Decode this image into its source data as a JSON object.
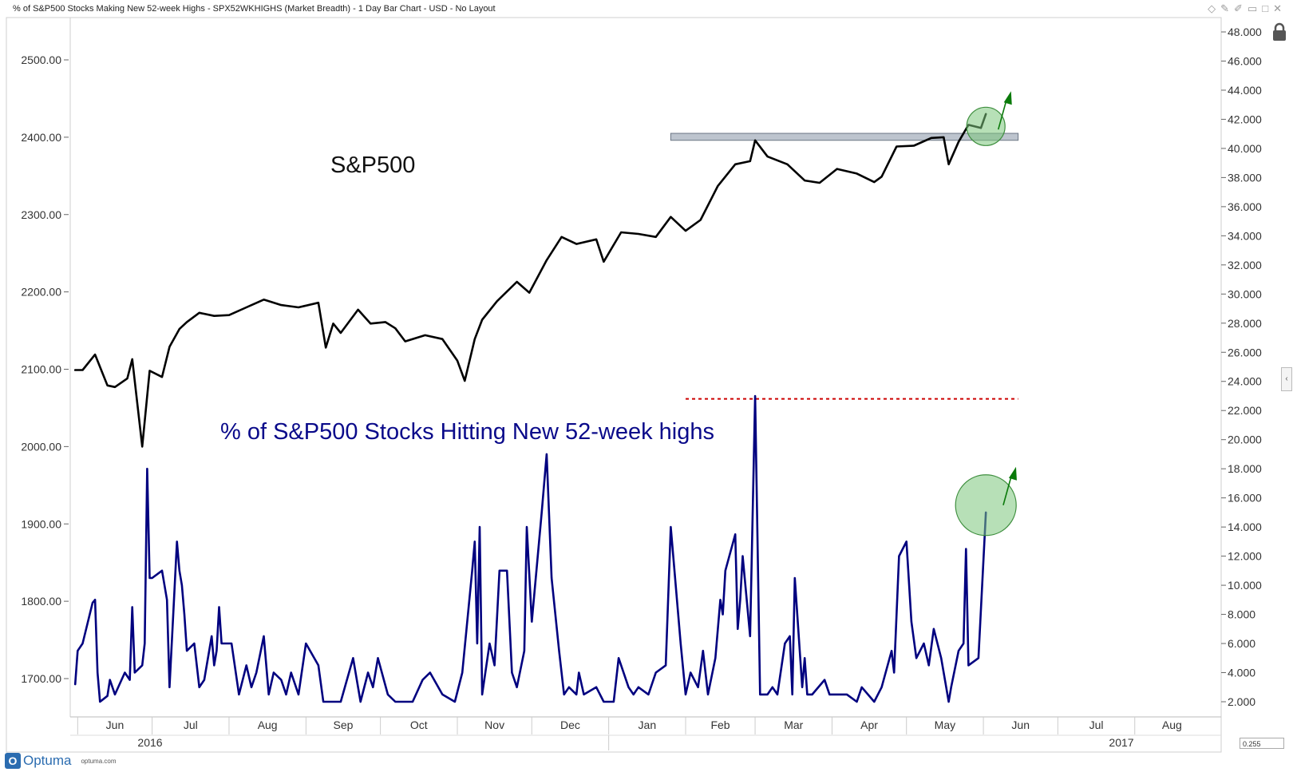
{
  "window": {
    "title": "% of S&P500 Stocks Making New 52-week Highs - SPX52WKHIGHS (Market Breadth) - 1 Day Bar Chart - USD - No Layout",
    "tool_icons": [
      "diamond-icon",
      "pin-icon",
      "pencil-icon",
      "minimize-icon",
      "maximize-icon",
      "close-icon"
    ]
  },
  "footer": {
    "logo_letter": "O",
    "logo_name": "Optuma",
    "logo_url": "optuma.com",
    "scale_readout": "0.255"
  },
  "colors": {
    "spx_line": "#000000",
    "breadth_line": "#00007f",
    "highlight_circle": "#7bc67b",
    "arrow": "#0a7a0a",
    "resistance_band": "#9aa5b4",
    "dotted_line": "#cc0000"
  },
  "chart_data": {
    "type": "line",
    "x_axis": {
      "months": [
        "Jun",
        "Jul",
        "Aug",
        "Sep",
        "Oct",
        "Nov",
        "Dec",
        "Jan",
        "Feb",
        "Mar",
        "Apr",
        "May",
        "Jun",
        "Jul",
        "Aug"
      ],
      "years": [
        "2016",
        "2017"
      ]
    },
    "left_axis": {
      "ticks": [
        "2500.00",
        "2400.00",
        "2300.00",
        "2200.00",
        "2100.00",
        "2000.00",
        "1900.00",
        "1800.00",
        "1700.00"
      ]
    },
    "right_axis": {
      "ticks": [
        "48.000",
        "46.000",
        "44.000",
        "42.000",
        "40.000",
        "38.000",
        "36.000",
        "34.000",
        "32.000",
        "30.000",
        "28.000",
        "26.000",
        "24.000",
        "22.000",
        "20.000",
        "18.000",
        "16.000",
        "14.000",
        "12.000",
        "10.000",
        "8.000",
        "6.000",
        "4.000",
        "2.000"
      ]
    },
    "annotations": {
      "spx_label": "S&P500",
      "breadth_label": "% of S&P500 Stocks Hitting New 52-week highs"
    },
    "series": [
      {
        "name": "S&P500",
        "axis": "left",
        "points": [
          [
            "2016-05-31",
            2099
          ],
          [
            "2016-06-03",
            2099
          ],
          [
            "2016-06-08",
            2119
          ],
          [
            "2016-06-13",
            2079
          ],
          [
            "2016-06-16",
            2077
          ],
          [
            "2016-06-21",
            2088
          ],
          [
            "2016-06-23",
            2113
          ],
          [
            "2016-06-27",
            2000
          ],
          [
            "2016-06-30",
            2098
          ],
          [
            "2016-07-05",
            2090
          ],
          [
            "2016-07-08",
            2129
          ],
          [
            "2016-07-12",
            2152
          ],
          [
            "2016-07-15",
            2161
          ],
          [
            "2016-07-20",
            2173
          ],
          [
            "2016-07-26",
            2169
          ],
          [
            "2016-08-01",
            2170
          ],
          [
            "2016-08-08",
            2180
          ],
          [
            "2016-08-15",
            2190
          ],
          [
            "2016-08-22",
            2183
          ],
          [
            "2016-08-29",
            2180
          ],
          [
            "2016-09-06",
            2186
          ],
          [
            "2016-09-09",
            2128
          ],
          [
            "2016-09-12",
            2159
          ],
          [
            "2016-09-15",
            2147
          ],
          [
            "2016-09-22",
            2177
          ],
          [
            "2016-09-27",
            2159
          ],
          [
            "2016-10-03",
            2161
          ],
          [
            "2016-10-07",
            2153
          ],
          [
            "2016-10-11",
            2136
          ],
          [
            "2016-10-19",
            2144
          ],
          [
            "2016-10-26",
            2139
          ],
          [
            "2016-11-01",
            2111
          ],
          [
            "2016-11-04",
            2085
          ],
          [
            "2016-11-08",
            2139
          ],
          [
            "2016-11-11",
            2164
          ],
          [
            "2016-11-17",
            2188
          ],
          [
            "2016-11-25",
            2213
          ],
          [
            "2016-11-30",
            2199
          ],
          [
            "2016-12-07",
            2241
          ],
          [
            "2016-12-13",
            2271
          ],
          [
            "2016-12-19",
            2262
          ],
          [
            "2016-12-27",
            2268
          ],
          [
            "2016-12-30",
            2239
          ],
          [
            "2017-01-06",
            2277
          ],
          [
            "2017-01-13",
            2275
          ],
          [
            "2017-01-20",
            2271
          ],
          [
            "2017-01-26",
            2297
          ],
          [
            "2017-02-01",
            2279
          ],
          [
            "2017-02-07",
            2293
          ],
          [
            "2017-02-14",
            2337
          ],
          [
            "2017-02-21",
            2365
          ],
          [
            "2017-02-27",
            2369
          ],
          [
            "2017-03-01",
            2396
          ],
          [
            "2017-03-06",
            2375
          ],
          [
            "2017-03-14",
            2365
          ],
          [
            "2017-03-21",
            2344
          ],
          [
            "2017-03-27",
            2341
          ],
          [
            "2017-04-03",
            2359
          ],
          [
            "2017-04-11",
            2353
          ],
          [
            "2017-04-18",
            2342
          ],
          [
            "2017-04-21",
            2349
          ],
          [
            "2017-04-27",
            2388
          ],
          [
            "2017-05-04",
            2389
          ],
          [
            "2017-05-11",
            2399
          ],
          [
            "2017-05-16",
            2400
          ],
          [
            "2017-05-18",
            2365
          ],
          [
            "2017-05-22",
            2394
          ],
          [
            "2017-05-26",
            2416
          ],
          [
            "2017-05-31",
            2412
          ],
          [
            "2017-06-02",
            2430
          ]
        ]
      },
      {
        "name": "% of S&P500 Stocks Making New 52-week Highs",
        "axis": "right",
        "points": [
          [
            "2016-05-31",
            3.2
          ],
          [
            "2016-06-01",
            5.5
          ],
          [
            "2016-06-03",
            6.0
          ],
          [
            "2016-06-07",
            8.8
          ],
          [
            "2016-06-08",
            9.0
          ],
          [
            "2016-06-09",
            4.0
          ],
          [
            "2016-06-10",
            2.0
          ],
          [
            "2016-06-13",
            2.4
          ],
          [
            "2016-06-14",
            3.5
          ],
          [
            "2016-06-16",
            2.5
          ],
          [
            "2016-06-20",
            4.0
          ],
          [
            "2016-06-22",
            3.5
          ],
          [
            "2016-06-23",
            8.5
          ],
          [
            "2016-06-24",
            4.0
          ],
          [
            "2016-06-27",
            4.5
          ],
          [
            "2016-06-28",
            6.0
          ],
          [
            "2016-06-29",
            18.0
          ],
          [
            "2016-06-30",
            10.5
          ],
          [
            "2016-07-01",
            10.5
          ],
          [
            "2016-07-05",
            11.0
          ],
          [
            "2016-07-07",
            9.0
          ],
          [
            "2016-07-08",
            3.0
          ],
          [
            "2016-07-11",
            13.0
          ],
          [
            "2016-07-12",
            11.0
          ],
          [
            "2016-07-13",
            10.0
          ],
          [
            "2016-07-14",
            8.0
          ],
          [
            "2016-07-15",
            5.5
          ],
          [
            "2016-07-18",
            6.0
          ],
          [
            "2016-07-20",
            3.0
          ],
          [
            "2016-07-22",
            3.5
          ],
          [
            "2016-07-25",
            6.5
          ],
          [
            "2016-07-26",
            4.5
          ],
          [
            "2016-07-27",
            5.5
          ],
          [
            "2016-07-28",
            8.5
          ],
          [
            "2016-07-29",
            6.0
          ],
          [
            "2016-08-02",
            6.0
          ],
          [
            "2016-08-05",
            2.5
          ],
          [
            "2016-08-08",
            4.5
          ],
          [
            "2016-08-10",
            3.0
          ],
          [
            "2016-08-12",
            4.0
          ],
          [
            "2016-08-15",
            6.5
          ],
          [
            "2016-08-17",
            2.5
          ],
          [
            "2016-08-19",
            4.0
          ],
          [
            "2016-08-22",
            3.5
          ],
          [
            "2016-08-24",
            2.5
          ],
          [
            "2016-08-26",
            4.0
          ],
          [
            "2016-08-29",
            2.5
          ],
          [
            "2016-09-01",
            6.0
          ],
          [
            "2016-09-06",
            4.5
          ],
          [
            "2016-09-08",
            2.0
          ],
          [
            "2016-09-12",
            2.0
          ],
          [
            "2016-09-15",
            2.0
          ],
          [
            "2016-09-20",
            5.0
          ],
          [
            "2016-09-23",
            2.0
          ],
          [
            "2016-09-26",
            4.0
          ],
          [
            "2016-09-28",
            3.0
          ],
          [
            "2016-09-30",
            5.0
          ],
          [
            "2016-10-04",
            2.5
          ],
          [
            "2016-10-07",
            2.0
          ],
          [
            "2016-10-11",
            2.0
          ],
          [
            "2016-10-14",
            2.0
          ],
          [
            "2016-10-18",
            3.5
          ],
          [
            "2016-10-21",
            4.0
          ],
          [
            "2016-10-26",
            2.5
          ],
          [
            "2016-10-31",
            2.0
          ],
          [
            "2016-11-03",
            4.0
          ],
          [
            "2016-11-07",
            11.0
          ],
          [
            "2016-11-08",
            13.0
          ],
          [
            "2016-11-09",
            6.0
          ],
          [
            "2016-11-10",
            14.0
          ],
          [
            "2016-11-11",
            2.5
          ],
          [
            "2016-11-14",
            6.0
          ],
          [
            "2016-11-16",
            4.5
          ],
          [
            "2016-11-18",
            11.0
          ],
          [
            "2016-11-21",
            11.0
          ],
          [
            "2016-11-23",
            4.0
          ],
          [
            "2016-11-25",
            3.0
          ],
          [
            "2016-11-28",
            5.5
          ],
          [
            "2016-11-29",
            14.0
          ],
          [
            "2016-12-01",
            7.5
          ],
          [
            "2016-12-05",
            15.0
          ],
          [
            "2016-12-07",
            19.0
          ],
          [
            "2016-12-09",
            10.5
          ],
          [
            "2016-12-12",
            5.5
          ],
          [
            "2016-12-14",
            2.5
          ],
          [
            "2016-12-16",
            3.0
          ],
          [
            "2016-12-19",
            2.5
          ],
          [
            "2016-12-20",
            4.0
          ],
          [
            "2016-12-22",
            2.5
          ],
          [
            "2016-12-27",
            3.0
          ],
          [
            "2016-12-30",
            2.0
          ],
          [
            "2017-01-03",
            2.0
          ],
          [
            "2017-01-05",
            5.0
          ],
          [
            "2017-01-09",
            3.0
          ],
          [
            "2017-01-11",
            2.5
          ],
          [
            "2017-01-13",
            3.0
          ],
          [
            "2017-01-17",
            2.5
          ],
          [
            "2017-01-20",
            4.0
          ],
          [
            "2017-01-24",
            4.5
          ],
          [
            "2017-01-26",
            14.0
          ],
          [
            "2017-01-30",
            6.0
          ],
          [
            "2017-02-01",
            2.5
          ],
          [
            "2017-02-03",
            4.0
          ],
          [
            "2017-02-06",
            3.0
          ],
          [
            "2017-02-08",
            5.5
          ],
          [
            "2017-02-10",
            2.5
          ],
          [
            "2017-02-13",
            5.0
          ],
          [
            "2017-02-15",
            9.0
          ],
          [
            "2017-02-16",
            8.0
          ],
          [
            "2017-02-17",
            11.0
          ],
          [
            "2017-02-21",
            13.5
          ],
          [
            "2017-02-22",
            7.0
          ],
          [
            "2017-02-23",
            9.0
          ],
          [
            "2017-02-24",
            12.0
          ],
          [
            "2017-02-27",
            6.5
          ],
          [
            "2017-03-01",
            23.0
          ],
          [
            "2017-03-03",
            2.5
          ],
          [
            "2017-03-06",
            2.5
          ],
          [
            "2017-03-08",
            3.0
          ],
          [
            "2017-03-10",
            2.5
          ],
          [
            "2017-03-13",
            6.0
          ],
          [
            "2017-03-15",
            6.5
          ],
          [
            "2017-03-16",
            2.5
          ],
          [
            "2017-03-17",
            10.5
          ],
          [
            "2017-03-20",
            3.0
          ],
          [
            "2017-03-21",
            5.0
          ],
          [
            "2017-03-22",
            2.5
          ],
          [
            "2017-03-24",
            2.5
          ],
          [
            "2017-03-29",
            3.5
          ],
          [
            "2017-03-31",
            2.5
          ],
          [
            "2017-04-04",
            2.5
          ],
          [
            "2017-04-07",
            2.5
          ],
          [
            "2017-04-11",
            2.0
          ],
          [
            "2017-04-13",
            3.0
          ],
          [
            "2017-04-18",
            2.0
          ],
          [
            "2017-04-21",
            3.0
          ],
          [
            "2017-04-25",
            5.5
          ],
          [
            "2017-04-26",
            4.0
          ],
          [
            "2017-04-28",
            12.0
          ],
          [
            "2017-05-01",
            13.0
          ],
          [
            "2017-05-03",
            7.5
          ],
          [
            "2017-05-05",
            5.0
          ],
          [
            "2017-05-08",
            6.0
          ],
          [
            "2017-05-10",
            4.5
          ],
          [
            "2017-05-12",
            7.0
          ],
          [
            "2017-05-15",
            5.0
          ],
          [
            "2017-05-17",
            3.0
          ],
          [
            "2017-05-18",
            2.0
          ],
          [
            "2017-05-19",
            3.0
          ],
          [
            "2017-05-22",
            5.5
          ],
          [
            "2017-05-24",
            6.0
          ],
          [
            "2017-05-25",
            12.5
          ],
          [
            "2017-05-26",
            4.5
          ],
          [
            "2017-05-30",
            5.0
          ],
          [
            "2017-06-02",
            15.0
          ]
        ]
      }
    ],
    "resistance_band": {
      "axis": "left",
      "from": "2017-01-26",
      "to": "2017-06-15",
      "low": 2396,
      "high": 2405
    },
    "dotted_level": {
      "axis": "right",
      "value": 22.8,
      "from": "2017-02-01",
      "to": "2017-06-15"
    },
    "highlight_circles": [
      {
        "axis": "left",
        "date": "2017-06-02",
        "value": 2414
      },
      {
        "axis": "right",
        "date": "2017-06-02",
        "value": 15.5
      }
    ],
    "up_arrows": [
      {
        "axis": "left",
        "date": "2017-06-07",
        "value": 2410
      },
      {
        "axis": "right",
        "date": "2017-06-09",
        "value": 15.5
      }
    ]
  }
}
